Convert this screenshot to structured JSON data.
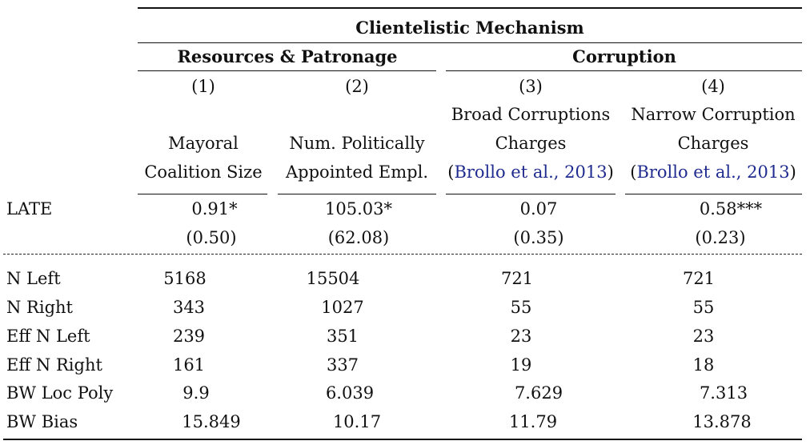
{
  "header": {
    "group_title": "Clientelistic Mechanism",
    "panel_left": "Resources & Patronage",
    "panel_right": "Corruption",
    "col_numbers": [
      "(1)",
      "(2)",
      "(3)",
      "(4)"
    ],
    "col1": {
      "line1": "Mayoral",
      "line2": "Coalition Size"
    },
    "col2": {
      "line1": "Num. Politically",
      "line2": "Appointed Empl."
    },
    "col3": {
      "line1": "Broad Corruptions",
      "line2": "Charges",
      "cite": "Brollo et al., 2013"
    },
    "col4": {
      "line1": "Narrow Corruption",
      "line2": "Charges",
      "cite": "Brollo et al., 2013"
    },
    "cite_open": "(",
    "cite_close": ")"
  },
  "late": {
    "label": "LATE",
    "estimates": [
      "0.91*",
      "105.03*",
      "0.07",
      "0.58***"
    ],
    "std_errors": [
      "(0.50)",
      "(62.08)",
      "(0.35)",
      "(0.23)"
    ]
  },
  "stats": [
    {
      "label": "N Left",
      "values": [
        "5168",
        "15504",
        "721",
        "721"
      ]
    },
    {
      "label": "N Right",
      "values": [
        "343",
        "1027",
        "55",
        "55"
      ]
    },
    {
      "label": "Eff N Left",
      "values": [
        "239",
        "351",
        "23",
        "23"
      ]
    },
    {
      "label": "Eff N Right",
      "values": [
        "161",
        "337",
        "19",
        "18"
      ]
    },
    {
      "label": "BW Loc Poly",
      "values": [
        "9.9",
        "6.039",
        "7.629",
        "7.313"
      ]
    },
    {
      "label": "BW Bias",
      "values": [
        "15.849",
        "10.17",
        "11.79",
        "13.878"
      ]
    }
  ]
}
